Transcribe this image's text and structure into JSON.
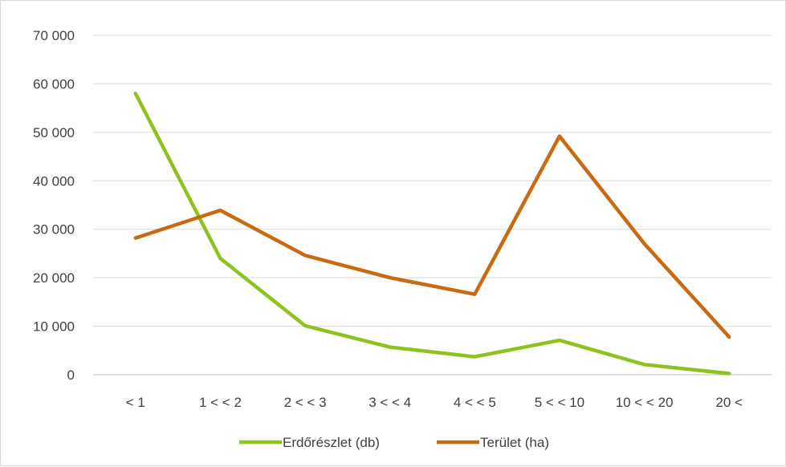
{
  "chart_data": {
    "type": "line",
    "title": "",
    "xlabel": "",
    "ylabel": "",
    "categories": [
      "< 1",
      "1 < < 2",
      "2 < < 3",
      "3 < < 4",
      "4 < < 5",
      "5 < < 10",
      "10 < < 20",
      "20 <"
    ],
    "series": [
      {
        "name": "Erdőrészlet (db)",
        "color": "#8dc21f",
        "values": [
          58000,
          24000,
          10100,
          5700,
          3700,
          7100,
          2100,
          250
        ]
      },
      {
        "name": "Terület (ha)",
        "color": "#c86a12",
        "values": [
          28200,
          33900,
          24600,
          20000,
          16600,
          49200,
          27000,
          7800
        ]
      }
    ],
    "ylim": [
      0,
      70000
    ],
    "y_ticks": [
      "0",
      "10 000",
      "20 000",
      "30 000",
      "40 000",
      "50 000",
      "60 000",
      "70 000"
    ],
    "grid": true,
    "legend_position": "bottom"
  }
}
